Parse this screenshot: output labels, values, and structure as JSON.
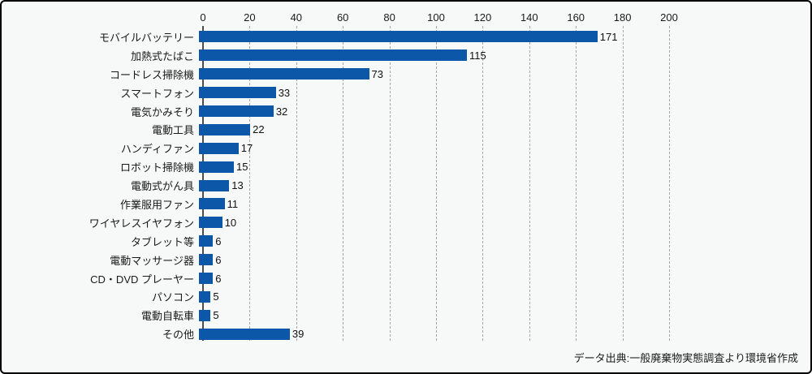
{
  "chart_data": {
    "type": "bar",
    "orientation": "horizontal",
    "title": "",
    "xlabel": "",
    "ylabel": "",
    "xlim": [
      0,
      200
    ],
    "x_ticks": [
      0,
      20,
      40,
      60,
      80,
      100,
      120,
      140,
      160,
      180,
      200
    ],
    "grid": "vertical-dashed",
    "legend": "none",
    "bar_color": "#0d57a8",
    "categories": [
      "モバイルバッテリー",
      "加熱式たばこ",
      "コードレス掃除機",
      "スマートフォン",
      "電気かみそり",
      "電動工具",
      "ハンディファン",
      "ロボット掃除機",
      "電動式がん具",
      "作業服用ファン",
      "ワイヤレスイヤフォン",
      "タブレット等",
      "電動マッサージ器",
      "CD・DVD プレーヤー",
      "パソコン",
      "電動自転車",
      "その他"
    ],
    "values": [
      171,
      115,
      73,
      33,
      32,
      22,
      17,
      15,
      13,
      11,
      10,
      6,
      6,
      6,
      5,
      5,
      39
    ],
    "data_labels_visible": true,
    "source_note": "データ出典:一般廃棄物実態調査より環境省作成"
  }
}
